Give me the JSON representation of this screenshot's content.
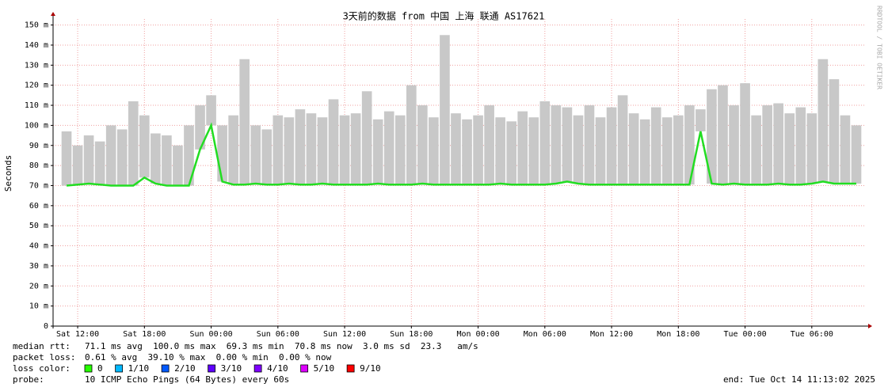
{
  "chart_data": {
    "type": "smoke",
    "title": "3天前的数据 from 中国 上海 联通 AS17621",
    "ylabel": "Seconds",
    "side_text": "RRDTOOL / TOBI OETIKER",
    "categories": [
      null,
      "Sat 12:00",
      null,
      null,
      null,
      null,
      null,
      "Sat 18:00",
      null,
      null,
      null,
      null,
      null,
      "Sun 00:00",
      null,
      null,
      null,
      null,
      null,
      "Sun 06:00",
      null,
      null,
      null,
      null,
      null,
      "Sun 12:00",
      null,
      null,
      null,
      null,
      null,
      "Sun 18:00",
      null,
      null,
      null,
      null,
      null,
      "Mon 00:00",
      null,
      null,
      null,
      null,
      null,
      "Mon 06:00",
      null,
      null,
      null,
      null,
      null,
      "Mon 12:00",
      null,
      null,
      null,
      null,
      null,
      "Mon 18:00",
      null,
      null,
      null,
      null,
      null,
      "Tue 00:00",
      null,
      null,
      null,
      null,
      null,
      "Tue 06:00",
      null,
      null,
      null,
      null
    ],
    "series": [
      {
        "color": "#22dd22",
        "values": [
          70,
          70.5,
          71,
          70.5,
          70,
          70,
          70,
          74,
          71,
          70,
          70,
          70,
          88,
          100,
          72,
          70.5,
          70.5,
          71,
          70.5,
          70.5,
          71,
          70.5,
          70.5,
          71,
          70.5,
          70.5,
          70.5,
          70.5,
          71,
          70.5,
          70.5,
          70.5,
          71,
          70.5,
          70.5,
          70.5,
          70.5,
          70.5,
          70.5,
          71,
          70.5,
          70.5,
          70.5,
          70.5,
          71,
          72,
          71,
          70.5,
          70.5,
          70.5,
          70.5,
          70.5,
          70.5,
          70.5,
          70.5,
          70.5,
          70.5,
          97,
          71,
          70.5,
          71,
          70.5,
          70.5,
          70.5,
          71,
          70.5,
          70.5,
          71,
          72,
          71,
          71,
          71
        ]
      },
      {
        "color": "#c8c8c8",
        "values": [
          97,
          90,
          95,
          92,
          100,
          98,
          112,
          105,
          96,
          95,
          90,
          100,
          110,
          115,
          100,
          105,
          133,
          100,
          98,
          105,
          104,
          108,
          106,
          104,
          113,
          105,
          106,
          117,
          103,
          107,
          105,
          120,
          110,
          104,
          145,
          106,
          103,
          105,
          110,
          104,
          102,
          107,
          104,
          112,
          110,
          109,
          105,
          110,
          104,
          109,
          115,
          106,
          103,
          109,
          104,
          105,
          110,
          108,
          118,
          120,
          110,
          121,
          105,
          110,
          111,
          106,
          109,
          106,
          133,
          123,
          105,
          100
        ]
      }
    ],
    "ylim": [
      0,
      153
    ],
    "yticks": [
      0,
      {
        "value": 10,
        "label": "10 m"
      },
      {
        "value": 20,
        "label": "20 m"
      },
      {
        "value": 30,
        "label": "30 m"
      },
      {
        "value": 40,
        "label": "40 m"
      },
      {
        "value": 50,
        "label": "50 m"
      },
      {
        "value": 60,
        "label": "60 m"
      },
      {
        "value": 70,
        "label": "70 m"
      },
      {
        "value": 80,
        "label": "80 m"
      },
      {
        "value": 90,
        "label": "90 m"
      },
      {
        "value": 100,
        "label": "100 m"
      },
      {
        "value": 110,
        "label": "110 m"
      },
      {
        "value": 120,
        "label": "120 m"
      },
      {
        "value": 130,
        "label": "130 m"
      },
      {
        "value": 140,
        "label": "140 m"
      },
      {
        "value": 150,
        "label": "150 m"
      }
    ],
    "grid": true,
    "footer": {
      "median_label": "median rtt:",
      "median_text": "71.1 ms avg  100.0 ms max  69.3 ms min  70.8 ms now  3.0 ms sd  23.3   am/s",
      "loss_label": "packet loss:",
      "loss_text": "0.61 % avg  39.10 % max  0.00 % min  0.00 % now",
      "color_label": "loss color:",
      "loss_colors": [
        {
          "label": "0",
          "color": "#26ff00"
        },
        {
          "label": "1/10",
          "color": "#00b8ff"
        },
        {
          "label": "2/10",
          "color": "#0059ff"
        },
        {
          "label": "3/10",
          "color": "#5e00ff"
        },
        {
          "label": "4/10",
          "color": "#7e00ff"
        },
        {
          "label": "5/10",
          "color": "#dd00ff"
        },
        {
          "label": "9/10",
          "color": "#ff0000"
        }
      ],
      "probe_label": "probe:",
      "probe_text": "10 ICMP Echo Pings (64 Bytes) every 60s",
      "end": "end: Tue Oct 14 11:13:02 2025"
    }
  }
}
